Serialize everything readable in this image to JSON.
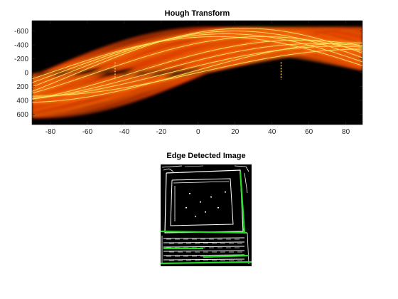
{
  "figure": {
    "background_color": "#ffffff"
  },
  "chart_data": [
    {
      "type": "heatmap",
      "title": "Hough Transform",
      "xlabel": "",
      "ylabel": "",
      "xlim": [
        -90,
        89
      ],
      "ylim": [
        -750,
        750
      ],
      "y_reversed": true,
      "xticks": [
        -80,
        -60,
        -40,
        -20,
        0,
        20,
        40,
        60,
        80
      ],
      "yticks": [
        -600,
        -400,
        -200,
        0,
        200,
        400,
        600
      ],
      "xticklabels": [
        "-80",
        "-60",
        "-40",
        "-20",
        "0",
        "20",
        "40",
        "60",
        "80"
      ],
      "yticklabels": [
        "-600",
        "-400",
        "-200",
        "0",
        "200",
        "400",
        "600"
      ],
      "colormap": "hot",
      "background_color": "#000000",
      "grid": false,
      "x_tick_direction": "in",
      "dominant_curves": [
        {
          "amplitude": 600,
          "phase_deg": -70
        },
        {
          "amplitude": 560,
          "phase_deg": -75
        },
        {
          "amplitude": 520,
          "phase_deg": -80
        },
        {
          "amplitude": 640,
          "phase_deg": -65
        },
        {
          "amplitude": 470,
          "phase_deg": -35
        },
        {
          "amplitude": 420,
          "phase_deg": -25
        },
        {
          "amplitude": 380,
          "phase_deg": -15
        },
        {
          "amplitude": 430,
          "phase_deg": -5
        },
        {
          "amplitude": 520,
          "phase_deg": -55
        },
        {
          "amplitude": 340,
          "phase_deg": 0
        }
      ],
      "peak_columns_theta": [
        -45,
        45
      ]
    },
    {
      "type": "image",
      "title": "Edge Detected Image",
      "xlabel": "",
      "ylabel": "",
      "background_color": "#000000",
      "edge_color": "#ffffff",
      "detected_line_color": "#22dd22",
      "axis_visible": false
    }
  ]
}
